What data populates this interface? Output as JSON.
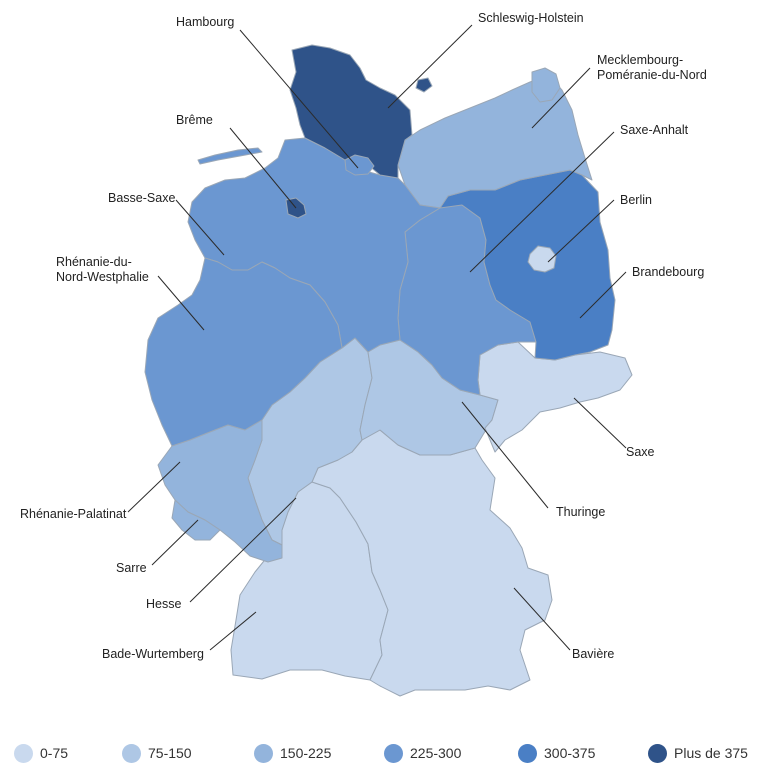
{
  "legend": [
    {
      "label": "0-75",
      "color": "#c9d9ee"
    },
    {
      "label": "75-150",
      "color": "#aec7e5"
    },
    {
      "label": "150-225",
      "color": "#93b4dc"
    },
    {
      "label": "225-300",
      "color": "#6b97d1"
    },
    {
      "label": "300-375",
      "color": "#4a7fc5"
    },
    {
      "label": "Plus de 375",
      "color": "#2f5389"
    }
  ],
  "states": [
    {
      "id": "schleswig-holstein",
      "label": "Schleswig-Holstein",
      "color": "#2f5389",
      "category": "Plus de 375"
    },
    {
      "id": "hambourg",
      "label": "Hambourg",
      "color": "#6b97d1",
      "category": "225-300"
    },
    {
      "id": "mecklembourg",
      "label": "Mecklembourg-\nPoméranie-du-Nord",
      "color": "#93b4dc",
      "category": "150-225"
    },
    {
      "id": "breme",
      "label": "Brême",
      "color": "#2f5389",
      "category": "Plus de 375"
    },
    {
      "id": "basse-saxe",
      "label": "Basse-Saxe",
      "color": "#6b97d1",
      "category": "225-300"
    },
    {
      "id": "saxe-anhalt",
      "label": "Saxe-Anhalt",
      "color": "#6b97d1",
      "category": "225-300"
    },
    {
      "id": "berlin",
      "label": "Berlin",
      "color": "#c9d9ee",
      "category": "0-75"
    },
    {
      "id": "brandebourg",
      "label": "Brandebourg",
      "color": "#4a7fc5",
      "category": "300-375"
    },
    {
      "id": "rhenanie-nord",
      "label": "Rhénanie-du-\nNord-Westphalie",
      "color": "#6b97d1",
      "category": "225-300"
    },
    {
      "id": "saxe",
      "label": "Saxe",
      "color": "#c9d9ee",
      "category": "0-75"
    },
    {
      "id": "thuringe",
      "label": "Thuringe",
      "color": "#aec7e5",
      "category": "75-150"
    },
    {
      "id": "hesse",
      "label": "Hesse",
      "color": "#aec7e5",
      "category": "75-150"
    },
    {
      "id": "rhenanie-palatinat",
      "label": "Rhénanie-Palatinat",
      "color": "#93b4dc",
      "category": "150-225"
    },
    {
      "id": "sarre",
      "label": "Sarre",
      "color": "#93b4dc",
      "category": "150-225"
    },
    {
      "id": "bade-wurtemberg",
      "label": "Bade-Wurtemberg",
      "color": "#c9d9ee",
      "category": "0-75"
    },
    {
      "id": "baviere",
      "label": "Bavière",
      "color": "#c9d9ee",
      "category": "0-75"
    }
  ]
}
